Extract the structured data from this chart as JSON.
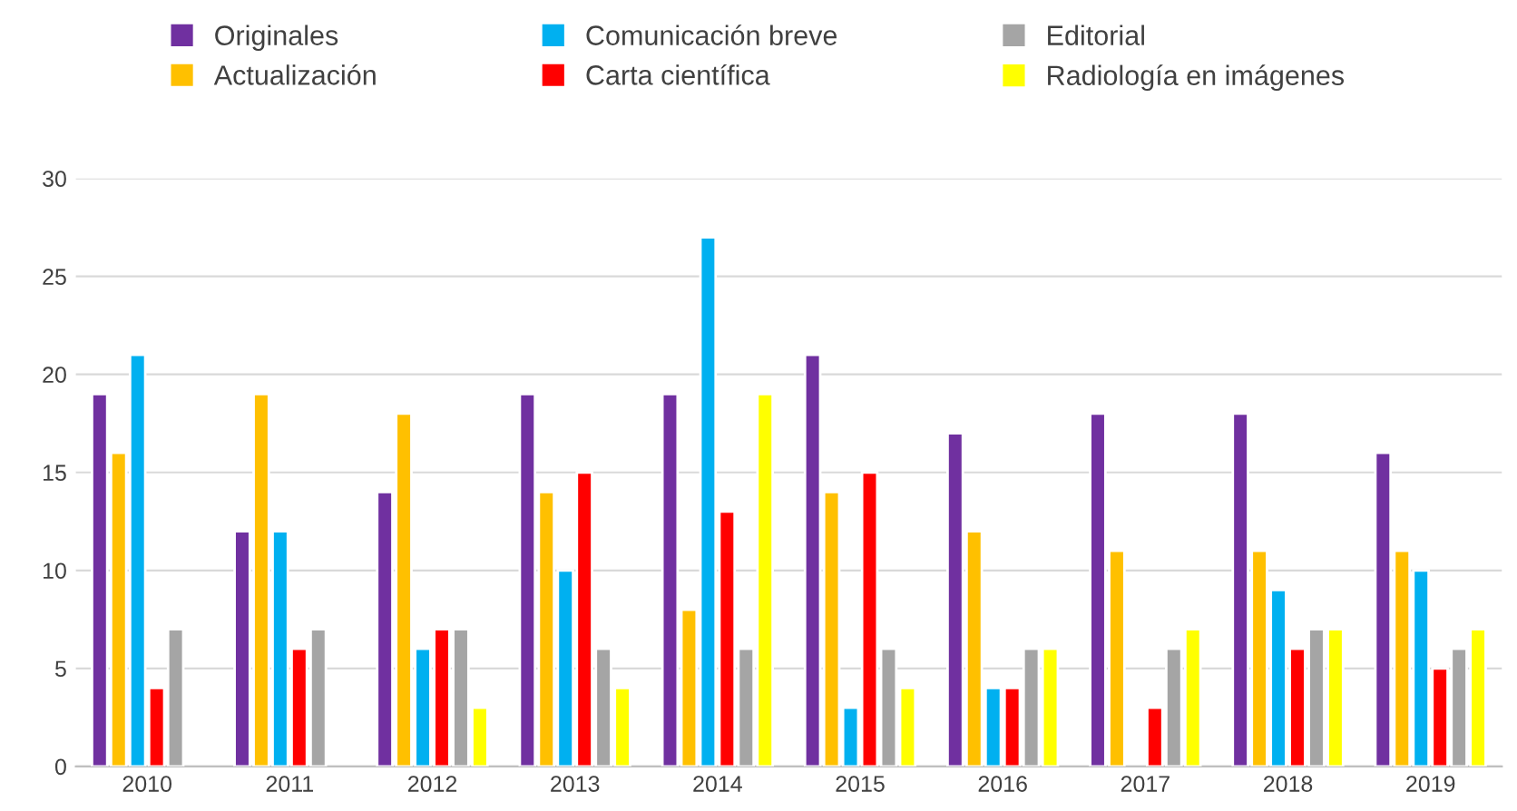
{
  "chart_data": {
    "type": "bar",
    "categories": [
      "2010",
      "2011",
      "2012",
      "2013",
      "2014",
      "2015",
      "2016",
      "2017",
      "2018",
      "2019"
    ],
    "series": [
      {
        "name": "Originales",
        "color": "#7030a0",
        "values": [
          19,
          12,
          14,
          19,
          19,
          21,
          17,
          18,
          18,
          16
        ]
      },
      {
        "name": "Actualización",
        "color": "#ffc000",
        "values": [
          16,
          19,
          18,
          14,
          8,
          14,
          12,
          11,
          11,
          11
        ]
      },
      {
        "name": "Comunicación breve",
        "color": "#00b0f0",
        "values": [
          21,
          12,
          6,
          10,
          27,
          3,
          4,
          null,
          9,
          10
        ]
      },
      {
        "name": "Carta científica",
        "color": "#ff0000",
        "values": [
          4,
          6,
          7,
          15,
          13,
          15,
          4,
          3,
          6,
          5
        ]
      },
      {
        "name": "Editorial",
        "color": "#a5a5a5",
        "values": [
          7,
          7,
          7,
          6,
          6,
          6,
          6,
          6,
          7,
          6
        ]
      },
      {
        "name": "Radiología en imágenes",
        "color": "#ffff00",
        "values": [
          null,
          null,
          3,
          4,
          19,
          4,
          6,
          7,
          7,
          7
        ]
      }
    ],
    "ylim": [
      0,
      30
    ],
    "yticks": [
      0,
      5,
      10,
      15,
      20,
      25,
      30
    ],
    "grid": "y",
    "legend": "top"
  }
}
